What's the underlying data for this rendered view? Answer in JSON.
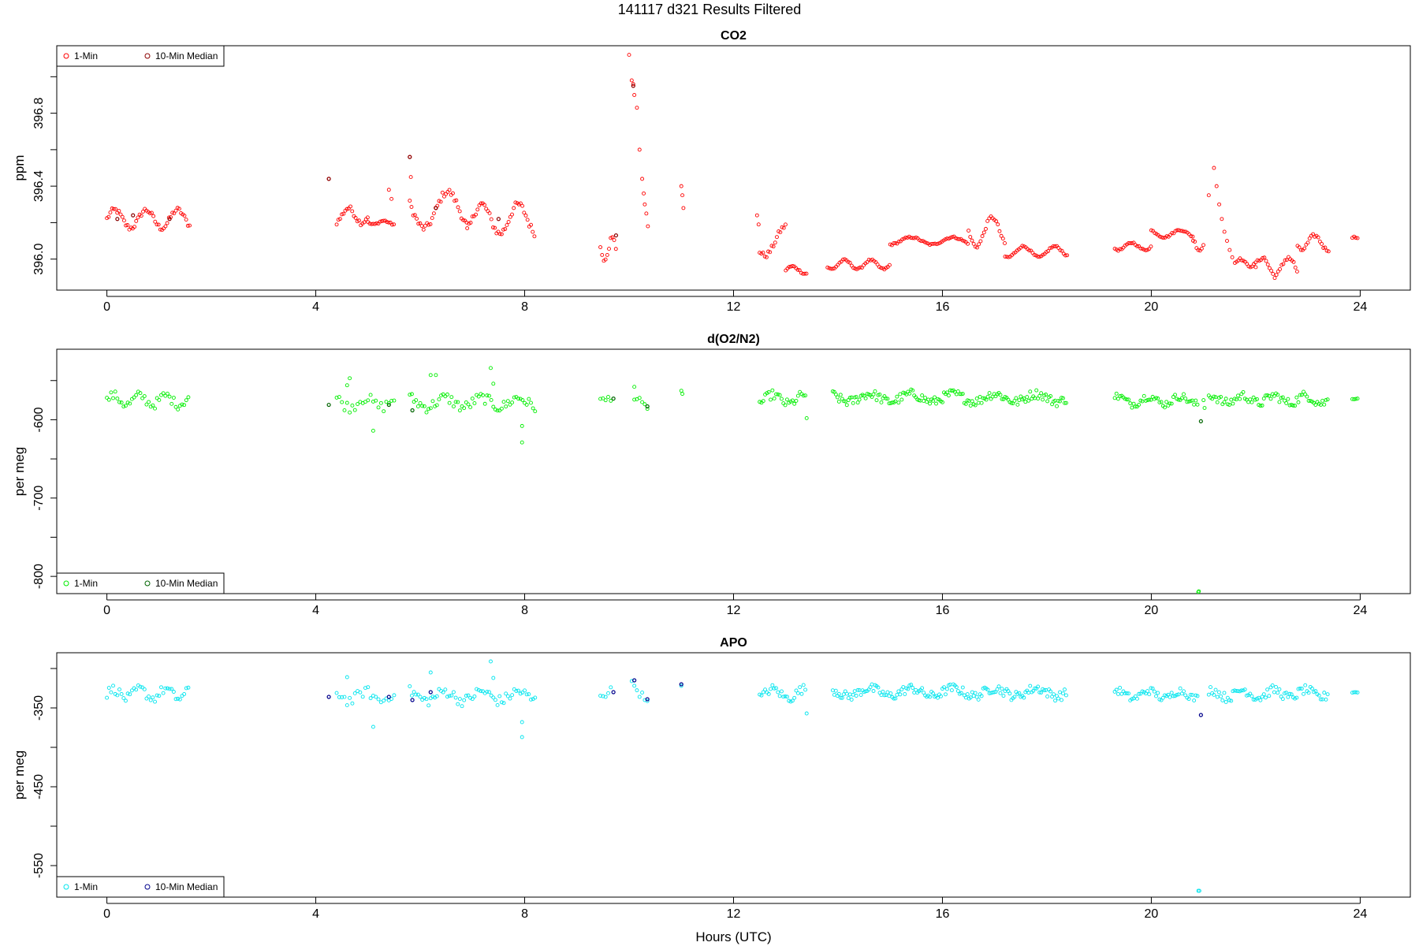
{
  "header": {
    "title": "141117   d321   Results Filtered"
  },
  "colors": {
    "co2_1min": "#ff0000",
    "co2_median": "#8b0000",
    "o2_1min": "#00ee00",
    "o2_median": "#006400",
    "apo_1min": "#00e5ee",
    "apo_median": "#00008b"
  },
  "chart_data": [
    {
      "type": "scatter",
      "title": "CO2",
      "xlabel": "",
      "ylabel": "ppm",
      "xlim": [
        -0.96,
        24.96
      ],
      "ylim": [
        395.83,
        397.17
      ],
      "xticks": [
        0,
        4,
        8,
        12,
        16,
        20,
        24
      ],
      "yticks": [
        396.0,
        396.4,
        396.8
      ],
      "ytick_labels": [
        "396.0",
        "396.4",
        "396.8"
      ],
      "yminor": [
        396.2,
        396.6,
        397.0
      ],
      "legend": {
        "position": "top-left",
        "entries": [
          "1-Min",
          "10-Min Median"
        ]
      },
      "series": [
        {
          "name": "1-Min",
          "segments": [
            {
              "x0": 0.0,
              "x1": 1.6,
              "base": 396.22,
              "amp": 0.05,
              "period": 0.6,
              "noise": 0.03,
              "step": 0.033
            },
            {
              "x0": 4.4,
              "x1": 5.0,
              "base": 396.24,
              "amp": 0.04,
              "period": 0.5,
              "noise": 0.03,
              "step": 0.033
            },
            {
              "x0": 5.0,
              "x1": 5.5,
              "base": 396.2,
              "amp": 0.01,
              "period": 0.4,
              "noise": 0.01,
              "step": 0.033
            },
            {
              "x0": 5.8,
              "x1": 6.9,
              "base": 396.27,
              "amp": 0.1,
              "period": 0.9,
              "noise": 0.04,
              "step": 0.033
            },
            {
              "x0": 6.9,
              "x1": 8.2,
              "base": 396.22,
              "amp": 0.08,
              "period": 0.7,
              "noise": 0.04,
              "step": 0.033
            },
            {
              "x0": 9.45,
              "x1": 9.75,
              "base": 396.06,
              "amp": 0.05,
              "period": 0.3,
              "noise": 0.05,
              "step": 0.033
            },
            {
              "x0": 12.5,
              "x1": 13.0,
              "base": 396.1,
              "amp": 0.08,
              "period": 0.8,
              "noise": 0.03,
              "step": 0.033
            },
            {
              "x0": 13.0,
              "x1": 13.4,
              "base": 395.94,
              "amp": 0.02,
              "period": 0.5,
              "noise": 0.01,
              "step": 0.033
            },
            {
              "x0": 13.8,
              "x1": 15.0,
              "base": 395.97,
              "amp": 0.025,
              "period": 0.5,
              "noise": 0.01,
              "step": 0.033
            },
            {
              "x0": 15.0,
              "x1": 16.5,
              "base": 396.1,
              "amp": 0.02,
              "period": 0.8,
              "noise": 0.01,
              "step": 0.033
            },
            {
              "x0": 16.5,
              "x1": 17.2,
              "base": 396.15,
              "amp": 0.08,
              "period": 0.6,
              "noise": 0.02,
              "step": 0.033
            },
            {
              "x0": 17.2,
              "x1": 18.4,
              "base": 396.04,
              "amp": 0.03,
              "period": 0.6,
              "noise": 0.01,
              "step": 0.033
            },
            {
              "x0": 19.3,
              "x1": 20.0,
              "base": 396.07,
              "amp": 0.02,
              "period": 0.5,
              "noise": 0.01,
              "step": 0.033
            },
            {
              "x0": 20.0,
              "x1": 20.8,
              "base": 396.14,
              "amp": 0.02,
              "period": 0.6,
              "noise": 0.01,
              "step": 0.033
            },
            {
              "x0": 20.8,
              "x1": 21.0,
              "base": 396.08,
              "amp": 0.03,
              "period": 0.3,
              "noise": 0.02,
              "step": 0.033
            },
            {
              "x0": 21.6,
              "x1": 22.0,
              "base": 395.98,
              "amp": 0.02,
              "period": 0.4,
              "noise": 0.01,
              "step": 0.033
            },
            {
              "x0": 22.0,
              "x1": 22.8,
              "base": 395.96,
              "amp": 0.05,
              "period": 0.5,
              "noise": 0.03,
              "step": 0.033
            },
            {
              "x0": 22.8,
              "x1": 23.4,
              "base": 396.09,
              "amp": 0.04,
              "period": 0.5,
              "noise": 0.02,
              "step": 0.033
            },
            {
              "x0": 23.85,
              "x1": 23.95,
              "base": 396.12,
              "amp": 0.0,
              "period": 1.0,
              "noise": 0.01,
              "step": 0.033
            }
          ],
          "points": [
            [
              4.25,
              396.44
            ],
            [
              5.8,
              396.56
            ],
            [
              5.82,
              396.45
            ],
            [
              10.0,
              397.12
            ],
            [
              10.05,
              396.98
            ],
            [
              10.08,
              396.96
            ],
            [
              10.1,
              396.9
            ],
            [
              10.15,
              396.83
            ],
            [
              10.2,
              396.6
            ],
            [
              10.25,
              396.44
            ],
            [
              10.28,
              396.36
            ],
            [
              10.3,
              396.3
            ],
            [
              10.33,
              396.25
            ],
            [
              10.36,
              396.18
            ],
            [
              11.0,
              396.4
            ],
            [
              11.02,
              396.35
            ],
            [
              11.04,
              396.28
            ],
            [
              12.45,
              396.24
            ],
            [
              12.48,
              396.19
            ],
            [
              21.1,
              396.35
            ],
            [
              21.2,
              396.5
            ],
            [
              21.25,
              396.4
            ],
            [
              21.3,
              396.3
            ],
            [
              21.35,
              396.22
            ],
            [
              21.4,
              396.15
            ],
            [
              21.45,
              396.1
            ],
            [
              21.5,
              396.05
            ],
            [
              21.55,
              396.01
            ],
            [
              5.4,
              396.38
            ],
            [
              5.45,
              396.33
            ]
          ]
        },
        {
          "name": "10-Min Median",
          "points": [
            [
              0.2,
              396.22
            ],
            [
              0.5,
              396.24
            ],
            [
              1.2,
              396.22
            ],
            [
              4.25,
              396.44
            ],
            [
              5.8,
              396.56
            ],
            [
              6.3,
              396.28
            ],
            [
              7.5,
              396.22
            ],
            [
              10.08,
              396.95
            ],
            [
              9.75,
              396.13
            ]
          ]
        }
      ]
    },
    {
      "type": "scatter",
      "title": "d(O2/N2)",
      "xlabel": "",
      "ylabel": "per meg",
      "xlim": [
        -0.96,
        24.96
      ],
      "ylim": [
        -822,
        -510
      ],
      "xticks": [
        0,
        4,
        8,
        12,
        16,
        20,
        24
      ],
      "yticks": [
        -600,
        -700,
        -800
      ],
      "ytick_labels": [
        "-600",
        "-700",
        "-800"
      ],
      "yminor": [
        -550,
        -650,
        -750
      ],
      "legend": {
        "position": "bottom-left",
        "entries": [
          "1-Min",
          "10-Min Median"
        ]
      },
      "series": [
        {
          "name": "1-Min",
          "segments": [
            {
              "x0": 0.0,
              "x1": 1.6,
              "base": -575,
              "amp": 6,
              "period": 0.5,
              "noise": 12,
              "step": 0.04
            },
            {
              "x0": 4.4,
              "x1": 5.5,
              "base": -578,
              "amp": 6,
              "period": 0.6,
              "noise": 14,
              "step": 0.05
            },
            {
              "x0": 5.8,
              "x1": 8.2,
              "base": -578,
              "amp": 6,
              "period": 0.7,
              "noise": 14,
              "step": 0.04
            },
            {
              "x0": 9.45,
              "x1": 9.7,
              "base": -573,
              "amp": 3,
              "period": 0.4,
              "noise": 10,
              "step": 0.05
            },
            {
              "x0": 10.1,
              "x1": 10.4,
              "base": -578,
              "amp": 6,
              "period": 0.4,
              "noise": 12,
              "step": 0.05
            },
            {
              "x0": 12.5,
              "x1": 13.4,
              "base": -574,
              "amp": 6,
              "period": 0.6,
              "noise": 12,
              "step": 0.035
            },
            {
              "x0": 13.9,
              "x1": 18.4,
              "base": -572,
              "amp": 5,
              "period": 0.8,
              "noise": 12,
              "step": 0.03
            },
            {
              "x0": 19.3,
              "x1": 20.9,
              "base": -575,
              "amp": 5,
              "period": 0.6,
              "noise": 10,
              "step": 0.033
            },
            {
              "x0": 21.1,
              "x1": 23.4,
              "base": -574,
              "amp": 5,
              "period": 0.6,
              "noise": 12,
              "step": 0.033
            },
            {
              "x0": 23.85,
              "x1": 23.95,
              "base": -573,
              "amp": 0,
              "period": 1.0,
              "noise": 2,
              "step": 0.033
            }
          ],
          "points": [
            [
              4.65,
              -547
            ],
            [
              4.6,
              -556
            ],
            [
              5.1,
              -614
            ],
            [
              6.2,
              -543
            ],
            [
              6.3,
              -543
            ],
            [
              7.35,
              -534
            ],
            [
              7.4,
              -554
            ],
            [
              7.95,
              -608
            ],
            [
              7.95,
              -629
            ],
            [
              10.1,
              -558
            ],
            [
              11.0,
              -563
            ],
            [
              11.02,
              -567
            ],
            [
              13.4,
              -598
            ],
            [
              20.9,
              -820
            ],
            [
              20.91,
              -819
            ],
            [
              21.0,
              -575
            ],
            [
              21.02,
              -585
            ]
          ]
        },
        {
          "name": "10-Min Median",
          "points": [
            [
              4.25,
              -581
            ],
            [
              5.4,
              -581
            ],
            [
              5.85,
              -588
            ],
            [
              9.7,
              -573
            ],
            [
              10.35,
              -583
            ],
            [
              20.95,
              -602
            ]
          ]
        }
      ]
    },
    {
      "type": "scatter",
      "title": "APO",
      "xlabel": "Hours (UTC)",
      "ylabel": "per meg",
      "xlim": [
        -0.96,
        24.96
      ],
      "ylim": [
        -590,
        -280
      ],
      "xticks": [
        0,
        4,
        8,
        12,
        16,
        20,
        24
      ],
      "yticks": [
        -350,
        -450,
        -550
      ],
      "ytick_labels": [
        "-350",
        "-450",
        "-550"
      ],
      "yminor": [
        -300,
        -400,
        -500
      ],
      "legend": {
        "position": "bottom-left",
        "entries": [
          "1-Min",
          "10-Min Median"
        ]
      },
      "series": [
        {
          "name": "1-Min",
          "segments": [
            {
              "x0": 0.0,
              "x1": 1.6,
              "base": -332,
              "amp": 6,
              "period": 0.5,
              "noise": 12,
              "step": 0.04
            },
            {
              "x0": 4.4,
              "x1": 5.5,
              "base": -335,
              "amp": 6,
              "period": 0.6,
              "noise": 14,
              "step": 0.05
            },
            {
              "x0": 5.8,
              "x1": 8.2,
              "base": -335,
              "amp": 6,
              "period": 0.7,
              "noise": 14,
              "step": 0.04
            },
            {
              "x0": 9.45,
              "x1": 9.7,
              "base": -330,
              "amp": 3,
              "period": 0.4,
              "noise": 10,
              "step": 0.05
            },
            {
              "x0": 10.1,
              "x1": 10.4,
              "base": -330,
              "amp": 8,
              "period": 0.4,
              "noise": 12,
              "step": 0.05
            },
            {
              "x0": 12.5,
              "x1": 13.4,
              "base": -332,
              "amp": 6,
              "period": 0.6,
              "noise": 12,
              "step": 0.035
            },
            {
              "x0": 13.9,
              "x1": 18.4,
              "base": -330,
              "amp": 5,
              "period": 0.8,
              "noise": 12,
              "step": 0.03
            },
            {
              "x0": 19.3,
              "x1": 20.9,
              "base": -333,
              "amp": 5,
              "period": 0.6,
              "noise": 10,
              "step": 0.033
            },
            {
              "x0": 21.1,
              "x1": 23.4,
              "base": -332,
              "amp": 5,
              "period": 0.6,
              "noise": 12,
              "step": 0.033
            },
            {
              "x0": 23.85,
              "x1": 23.95,
              "base": -330,
              "amp": 0,
              "period": 1.0,
              "noise": 2,
              "step": 0.033
            }
          ],
          "points": [
            [
              4.6,
              -311
            ],
            [
              5.1,
              -374
            ],
            [
              6.2,
              -305
            ],
            [
              7.35,
              -291
            ],
            [
              7.4,
              -312
            ],
            [
              7.95,
              -368
            ],
            [
              7.95,
              -387
            ],
            [
              10.05,
              -316
            ],
            [
              10.1,
              -315
            ],
            [
              11.0,
              -322
            ],
            [
              13.4,
              -357
            ],
            [
              20.9,
              -582
            ],
            [
              20.92,
              -582
            ]
          ]
        },
        {
          "name": "10-Min Median",
          "points": [
            [
              4.25,
              -336
            ],
            [
              5.4,
              -336
            ],
            [
              5.85,
              -340
            ],
            [
              6.2,
              -330
            ],
            [
              9.7,
              -330
            ],
            [
              10.1,
              -315
            ],
            [
              10.35,
              -339
            ],
            [
              11.0,
              -320
            ],
            [
              20.95,
              -359
            ]
          ]
        }
      ]
    }
  ]
}
